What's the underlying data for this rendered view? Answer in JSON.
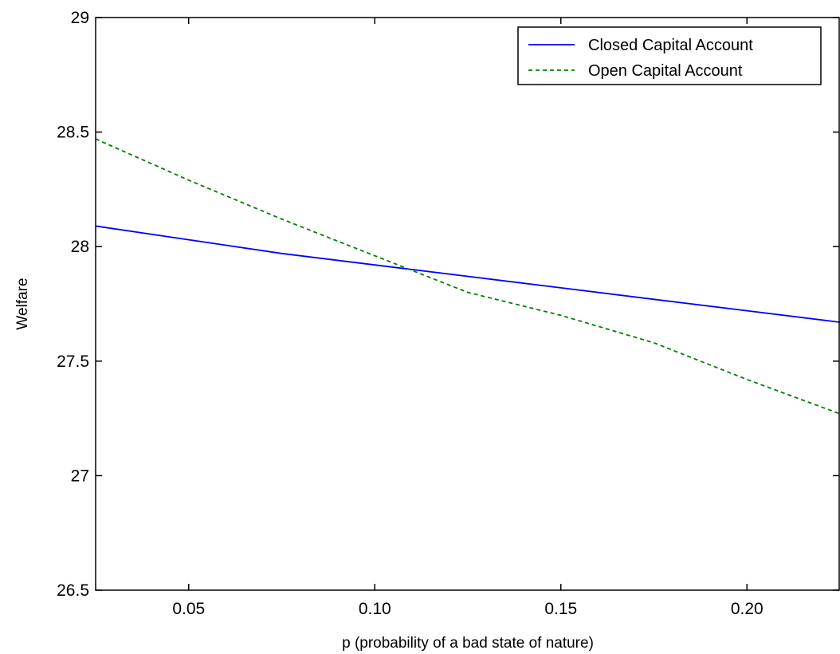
{
  "chart_data": {
    "type": "line",
    "title": "",
    "xlabel": "p (probability of a bad state of nature)",
    "ylabel": "Welfare",
    "xlim": [
      0.025,
      0.225
    ],
    "ylim": [
      26.5,
      29
    ],
    "xticks": [
      0.05,
      0.1,
      0.15,
      0.2
    ],
    "xtick_labels": [
      "0.05",
      "0.10",
      "0.15",
      "0.20"
    ],
    "yticks": [
      26.5,
      27,
      27.5,
      28,
      28.5,
      29
    ],
    "ytick_labels": [
      "26.5",
      "27",
      "27.5",
      "28",
      "28.5",
      "29"
    ],
    "grid": false,
    "legend_position": "top-right",
    "series": [
      {
        "name": "Closed Capital Account",
        "color": "#0000ff",
        "style": "solid",
        "x": [
          0.025,
          0.05,
          0.075,
          0.1,
          0.125,
          0.15,
          0.175,
          0.2,
          0.225
        ],
        "y": [
          28.09,
          28.03,
          27.97,
          27.92,
          27.87,
          27.82,
          27.77,
          27.72,
          27.67
        ]
      },
      {
        "name": "Open Capital Account",
        "color": "#008000",
        "style": "dashed",
        "x": [
          0.025,
          0.05,
          0.075,
          0.1,
          0.125,
          0.15,
          0.175,
          0.2,
          0.225
        ],
        "y": [
          28.47,
          28.29,
          28.12,
          27.96,
          27.8,
          27.7,
          27.58,
          27.42,
          27.27
        ]
      }
    ]
  }
}
